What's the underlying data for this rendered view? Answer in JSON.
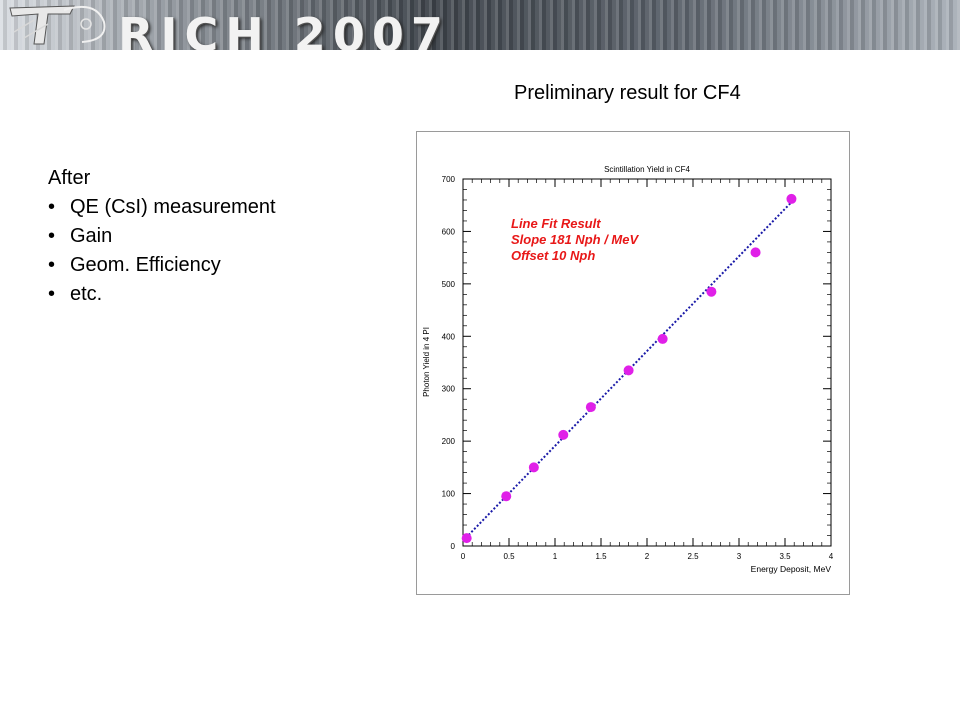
{
  "banner": {
    "title": "RICH 2007",
    "logo_icon": "rich-logo-icon"
  },
  "slide": {
    "subtitle": "Preliminary result for CF4",
    "intro": "After",
    "bullets": [
      "QE (CsI) measurement",
      "Gain",
      "Geom. Efficiency",
      "etc."
    ]
  },
  "chart_data": {
    "type": "scatter",
    "title": "Scintillation Yield in CF4",
    "xlabel": "Energy Deposit, MeV",
    "ylabel": "Photon Yield in 4 PI",
    "xlim": [
      0,
      4
    ],
    "ylim": [
      0,
      700
    ],
    "xticks": [
      "0",
      "0.5",
      "1",
      "1.5",
      "2",
      "2.5",
      "3",
      "3.5",
      "4"
    ],
    "yticks": [
      "0",
      "100",
      "200",
      "300",
      "400",
      "500",
      "600",
      "700"
    ],
    "grid": false,
    "series": [
      {
        "marker_color": "#e020e8",
        "x": [
          0.04,
          0.47,
          0.77,
          1.09,
          1.39,
          1.8,
          2.17,
          2.7,
          3.18,
          3.57
        ],
        "y": [
          15,
          95,
          150,
          212,
          265,
          335,
          395,
          485,
          560,
          662
        ]
      }
    ],
    "fit": {
      "x": [
        0,
        3.56
      ],
      "y": [
        10,
        654
      ],
      "line_color": "#1a1aa8",
      "line_style": "dotted"
    },
    "annotation": {
      "lines": [
        "Line Fit Result",
        "Slope 181 Nph / MeV",
        "Offset 10 Nph"
      ],
      "color": "#e81818"
    }
  }
}
